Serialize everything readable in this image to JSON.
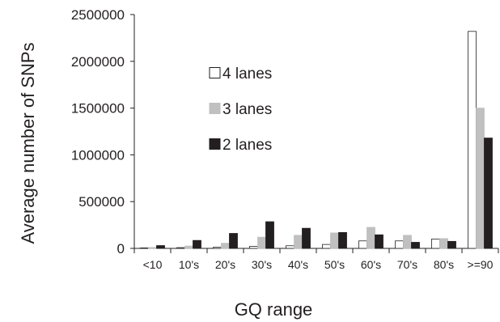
{
  "chart_data": {
    "type": "bar",
    "title": "",
    "xlabel": "GQ range",
    "ylabel": "Average number of SNPs",
    "ylim": [
      0,
      2500000
    ],
    "yticks": [
      "0",
      "500000",
      "1000000",
      "1500000",
      "2000000",
      "2500000"
    ],
    "ytick_values": [
      0,
      500000,
      1000000,
      1500000,
      2000000,
      2500000
    ],
    "grid": false,
    "legend_position": "upper-left",
    "categories": [
      "<10",
      "10's",
      "20's",
      "30's",
      "40's",
      "50's",
      "60's",
      "70's",
      "80's",
      ">=90"
    ],
    "series": [
      {
        "name": "4 lanes",
        "color": "#ffffff",
        "stroke": "#231f20",
        "values": [
          5000,
          8000,
          12000,
          22000,
          28000,
          42000,
          80000,
          80000,
          100000,
          2320000
        ]
      },
      {
        "name": "3 lanes",
        "color": "#c0c0c0",
        "stroke": "#c0c0c0",
        "values": [
          10000,
          25000,
          55000,
          120000,
          140000,
          165000,
          225000,
          140000,
          105000,
          1500000
        ]
      },
      {
        "name": "2 lanes",
        "color": "#231f20",
        "stroke": "#231f20",
        "values": [
          30000,
          85000,
          160000,
          285000,
          215000,
          170000,
          145000,
          65000,
          75000,
          1180000
        ]
      }
    ]
  }
}
